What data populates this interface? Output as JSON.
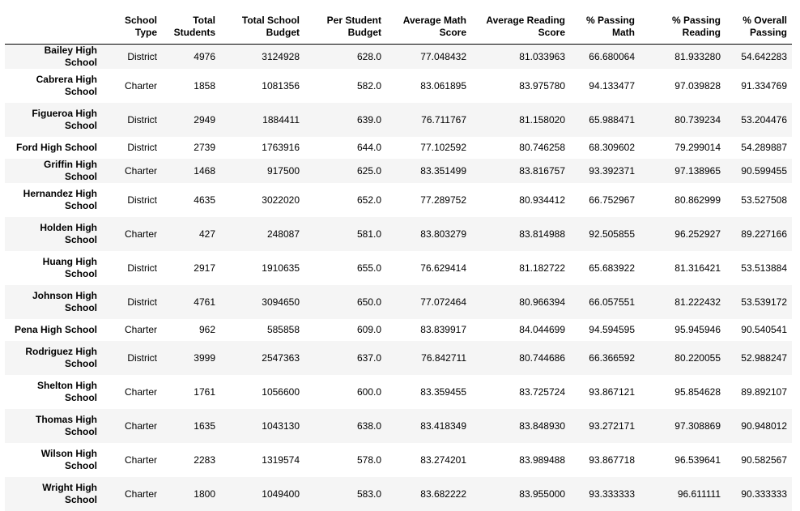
{
  "columns": [
    "School Type",
    "Total Students",
    "Total School Budget",
    "Per Student Budget",
    "Average Math Score",
    "Average Reading Score",
    "% Passing Math",
    "% Passing Reading",
    "% Overall Passing"
  ],
  "columns_wrapped": [
    [
      "School",
      "Type"
    ],
    [
      "Total",
      "Students"
    ],
    [
      "Total School",
      "Budget"
    ],
    [
      "Per Student",
      "Budget"
    ],
    [
      "Average Math",
      "Score"
    ],
    [
      "Average Reading",
      "Score"
    ],
    [
      "% Passing",
      "Math"
    ],
    [
      "% Passing",
      "Reading"
    ],
    [
      "% Overall",
      "Passing"
    ]
  ],
  "rows": [
    {
      "name": "Bailey High School",
      "cells": [
        "District",
        "4976",
        "3124928",
        "628.0",
        "77.048432",
        "81.033963",
        "66.680064",
        "81.933280",
        "54.642283"
      ]
    },
    {
      "name": "Cabrera High School",
      "cells": [
        "Charter",
        "1858",
        "1081356",
        "582.0",
        "83.061895",
        "83.975780",
        "94.133477",
        "97.039828",
        "91.334769"
      ]
    },
    {
      "name": "Figueroa High School",
      "cells": [
        "District",
        "2949",
        "1884411",
        "639.0",
        "76.711767",
        "81.158020",
        "65.988471",
        "80.739234",
        "53.204476"
      ]
    },
    {
      "name": "Ford High School",
      "cells": [
        "District",
        "2739",
        "1763916",
        "644.0",
        "77.102592",
        "80.746258",
        "68.309602",
        "79.299014",
        "54.289887"
      ]
    },
    {
      "name": "Griffin High School",
      "cells": [
        "Charter",
        "1468",
        "917500",
        "625.0",
        "83.351499",
        "83.816757",
        "93.392371",
        "97.138965",
        "90.599455"
      ]
    },
    {
      "name": "Hernandez High School",
      "cells": [
        "District",
        "4635",
        "3022020",
        "652.0",
        "77.289752",
        "80.934412",
        "66.752967",
        "80.862999",
        "53.527508"
      ]
    },
    {
      "name": "Holden High School",
      "cells": [
        "Charter",
        "427",
        "248087",
        "581.0",
        "83.803279",
        "83.814988",
        "92.505855",
        "96.252927",
        "89.227166"
      ]
    },
    {
      "name": "Huang High School",
      "cells": [
        "District",
        "2917",
        "1910635",
        "655.0",
        "76.629414",
        "81.182722",
        "65.683922",
        "81.316421",
        "53.513884"
      ]
    },
    {
      "name": "Johnson High School",
      "cells": [
        "District",
        "4761",
        "3094650",
        "650.0",
        "77.072464",
        "80.966394",
        "66.057551",
        "81.222432",
        "53.539172"
      ]
    },
    {
      "name": "Pena High School",
      "cells": [
        "Charter",
        "962",
        "585858",
        "609.0",
        "83.839917",
        "84.044699",
        "94.594595",
        "95.945946",
        "90.540541"
      ]
    },
    {
      "name": "Rodriguez High School",
      "cells": [
        "District",
        "3999",
        "2547363",
        "637.0",
        "76.842711",
        "80.744686",
        "66.366592",
        "80.220055",
        "52.988247"
      ]
    },
    {
      "name": "Shelton High School",
      "cells": [
        "Charter",
        "1761",
        "1056600",
        "600.0",
        "83.359455",
        "83.725724",
        "93.867121",
        "95.854628",
        "89.892107"
      ]
    },
    {
      "name": "Thomas High School",
      "cells": [
        "Charter",
        "1635",
        "1043130",
        "638.0",
        "83.418349",
        "83.848930",
        "93.272171",
        "97.308869",
        "90.948012"
      ]
    },
    {
      "name": "Wilson High School",
      "cells": [
        "Charter",
        "2283",
        "1319574",
        "578.0",
        "83.274201",
        "83.989488",
        "93.867718",
        "96.539641",
        "90.582567"
      ]
    },
    {
      "name": "Wright High School",
      "cells": [
        "Charter",
        "1800",
        "1049400",
        "583.0",
        "83.682222",
        "83.955000",
        "93.333333",
        "96.611111",
        "90.333333"
      ]
    }
  ]
}
